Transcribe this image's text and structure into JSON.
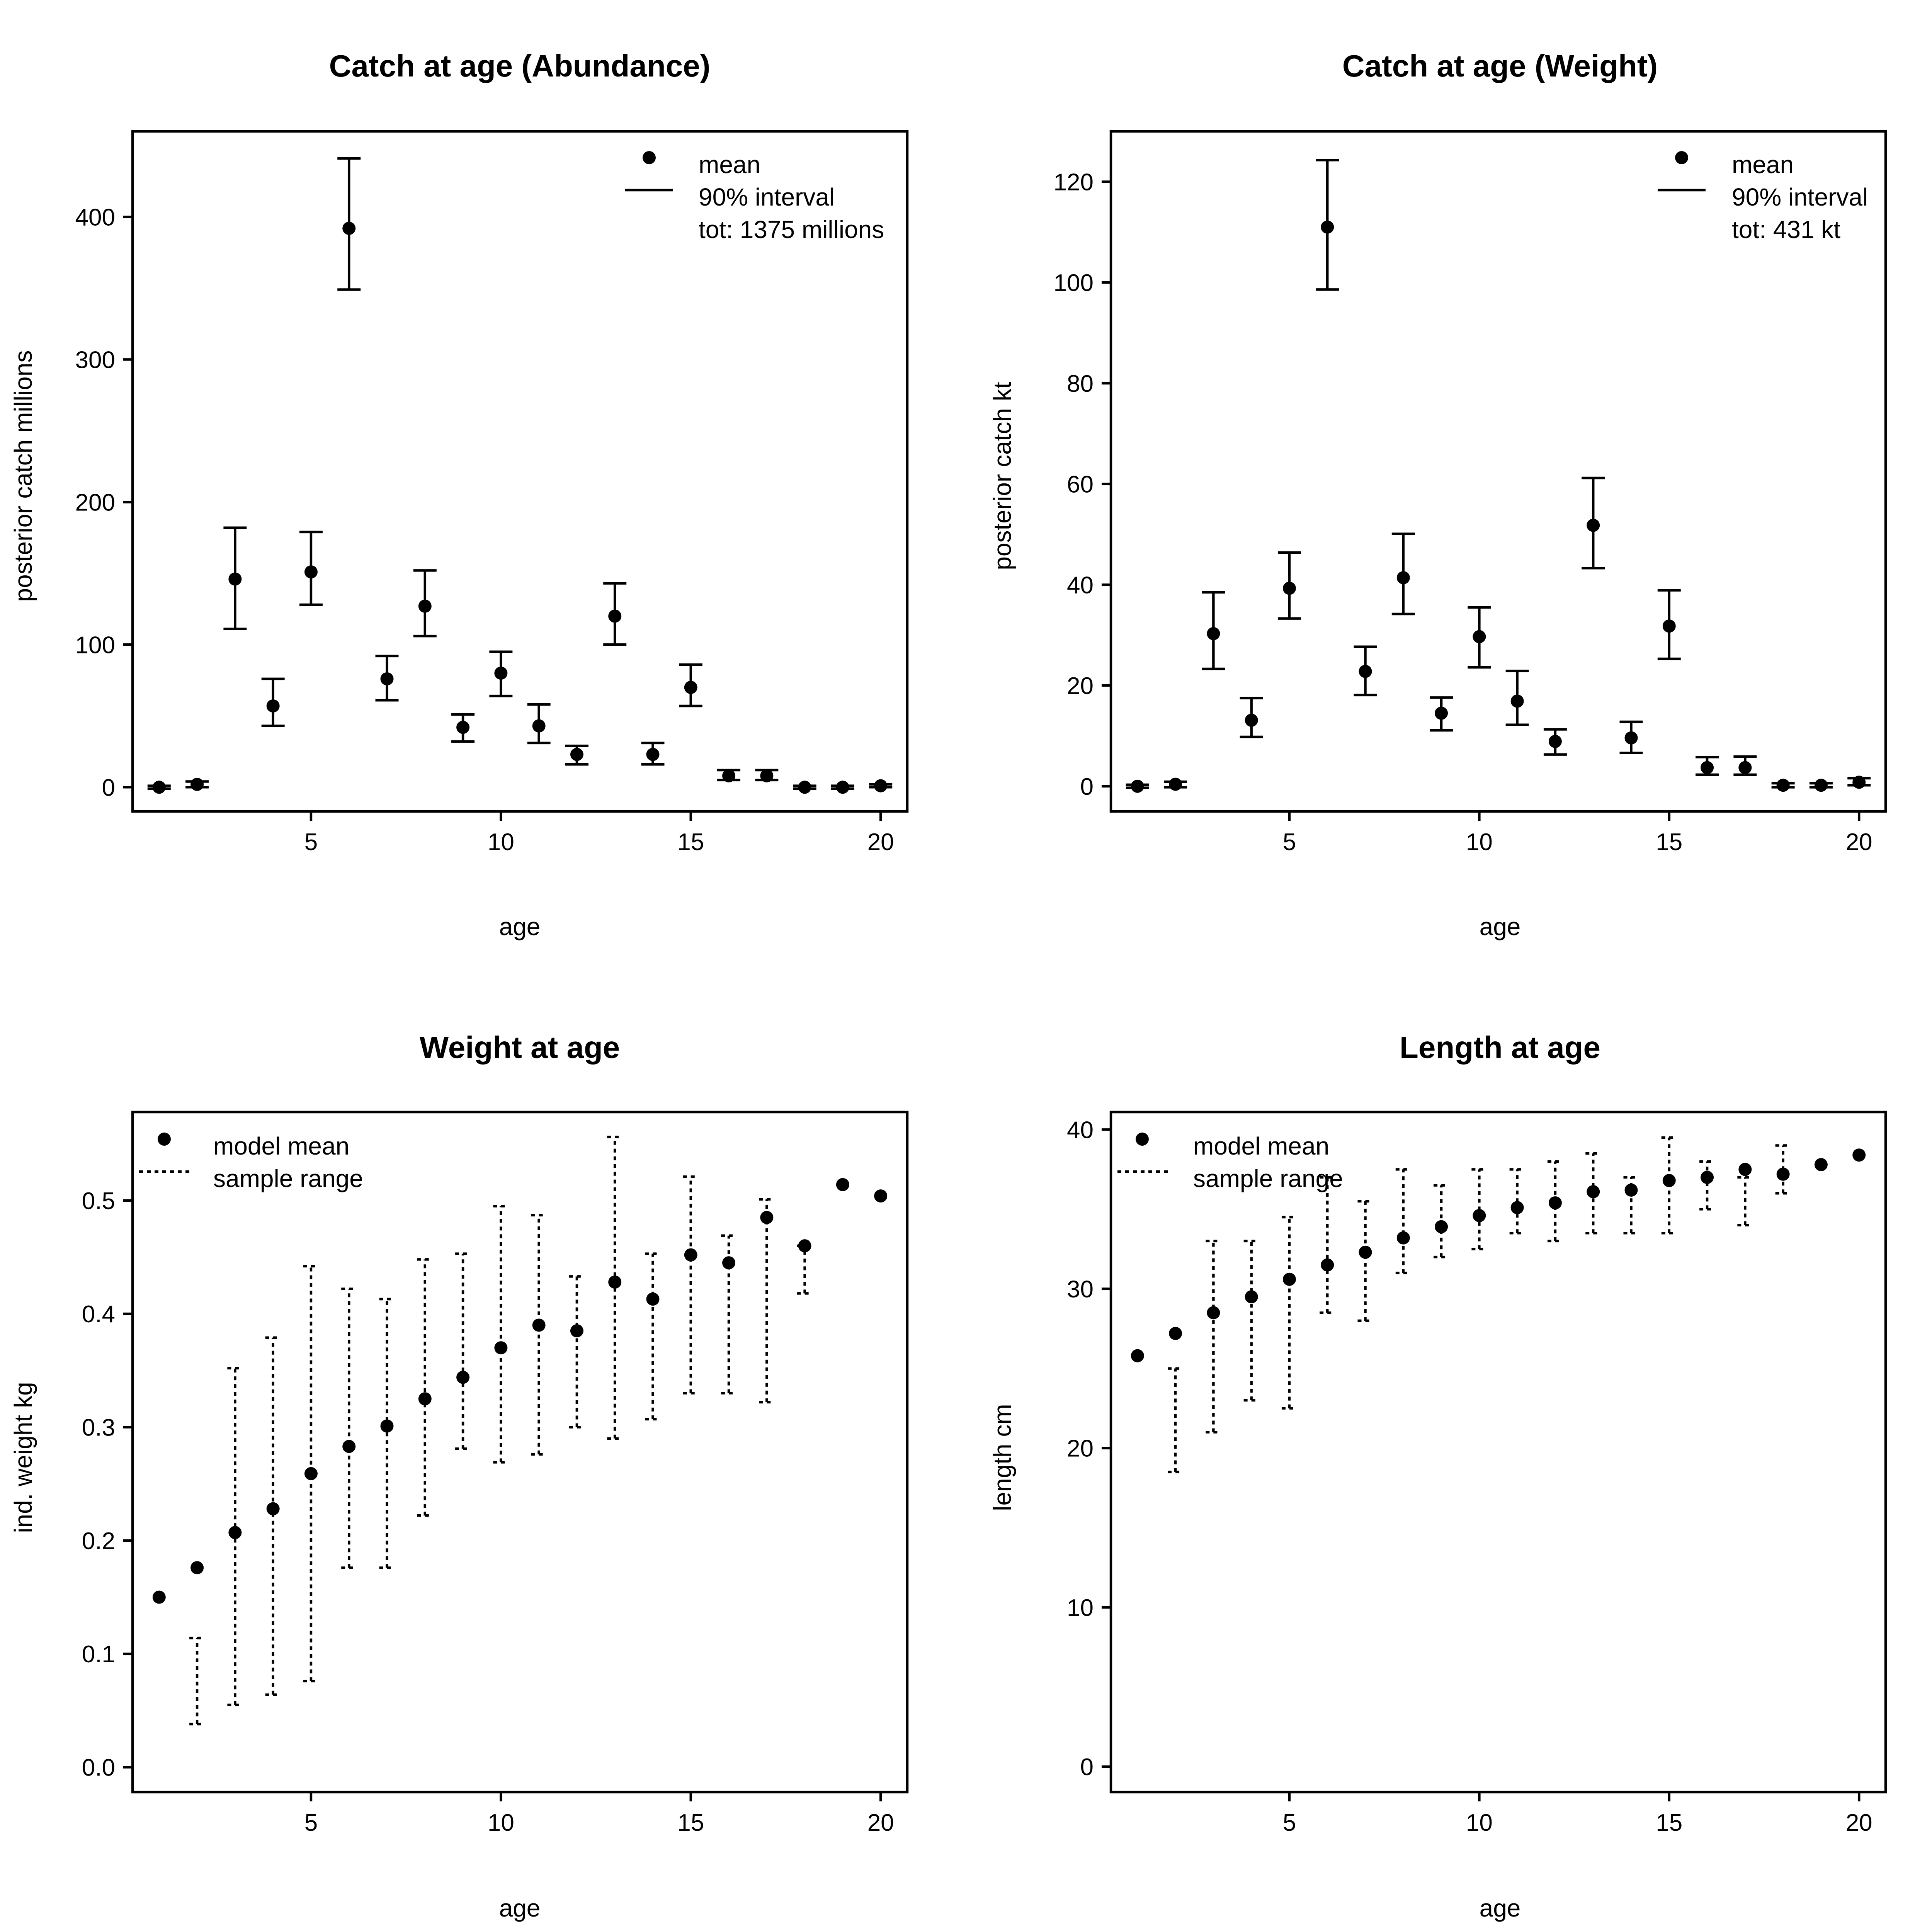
{
  "chart_data": [
    {
      "type": "scatter",
      "title": "Catch at age (Abundance)",
      "xlabel": "age",
      "ylabel": "posterior catch millions",
      "xlim": [
        0.3,
        20.7
      ],
      "ylim": [
        -17,
        460
      ],
      "xticks": [
        5,
        10,
        15,
        20
      ],
      "yticks": [
        0,
        100,
        200,
        300,
        400
      ],
      "interval_style": "solid",
      "legend": {
        "position": "top-right",
        "point_label": "mean",
        "line_label": "90% interval",
        "extra_label": "tot: 1375 millions"
      },
      "x": [
        1,
        2,
        3,
        4,
        5,
        6,
        7,
        8,
        9,
        10,
        11,
        12,
        13,
        14,
        15,
        16,
        17,
        18,
        19,
        20
      ],
      "mean": [
        0,
        2,
        146,
        57,
        151,
        392,
        76,
        127,
        42,
        80,
        43,
        23,
        120,
        23,
        70,
        8,
        8,
        0,
        0,
        1
      ],
      "lower": [
        -1,
        0,
        111,
        43,
        128,
        349,
        61,
        106,
        32,
        64,
        31,
        16,
        100,
        16,
        57,
        5,
        5,
        -1,
        -1,
        0
      ],
      "upper": [
        1,
        4,
        182,
        76,
        179,
        441,
        92,
        152,
        51,
        95,
        58,
        29,
        143,
        31,
        86,
        12,
        12,
        1,
        1,
        2
      ]
    },
    {
      "type": "scatter",
      "title": "Catch at age (Weight)",
      "xlabel": "age",
      "ylabel": "posterior catch kt",
      "xlim": [
        0.3,
        20.7
      ],
      "ylim": [
        -5,
        130
      ],
      "xticks": [
        5,
        10,
        15,
        20
      ],
      "yticks": [
        0,
        20,
        40,
        60,
        80,
        100,
        120
      ],
      "interval_style": "solid",
      "legend": {
        "position": "top-right",
        "point_label": "mean",
        "line_label": "90% interval",
        "extra_label": "tot: 431 kt"
      },
      "x": [
        1,
        2,
        3,
        4,
        5,
        6,
        7,
        8,
        9,
        10,
        11,
        12,
        13,
        14,
        15,
        16,
        17,
        18,
        19,
        20
      ],
      "mean": [
        0,
        0.4,
        30.3,
        13.1,
        39.3,
        111,
        22.8,
        41.4,
        14.5,
        29.7,
        16.9,
        8.9,
        51.8,
        9.6,
        31.8,
        3.7,
        3.7,
        0.2,
        0.2,
        0.8
      ],
      "lower": [
        -0.3,
        -0.2,
        23.3,
        9.8,
        33.3,
        98.6,
        18.1,
        34.2,
        11.1,
        23.6,
        12.2,
        6.3,
        43.3,
        6.6,
        25.3,
        2.3,
        2.3,
        -0.2,
        -0.2,
        0.2
      ],
      "upper": [
        0.3,
        0.9,
        38.5,
        17.5,
        46.4,
        124.3,
        27.7,
        50.1,
        17.6,
        35.5,
        22.9,
        11.3,
        61.2,
        12.8,
        38.9,
        5.8,
        5.9,
        0.6,
        0.6,
        1.6
      ]
    },
    {
      "type": "scatter",
      "title": "Weight at age",
      "xlabel": "age",
      "ylabel": "ind. weight kg",
      "xlim": [
        0.3,
        20.7
      ],
      "ylim": [
        -0.022,
        0.578
      ],
      "xticks": [
        5,
        10,
        15,
        20
      ],
      "yticks": [
        "0.0",
        "0.1",
        "0.2",
        "0.3",
        "0.4",
        "0.5"
      ],
      "interval_style": "dotted",
      "legend": {
        "position": "top-left",
        "point_label": "model mean",
        "line_label": "sample range",
        "extra_label": ""
      },
      "x": [
        1,
        2,
        3,
        4,
        5,
        6,
        7,
        8,
        9,
        10,
        11,
        12,
        13,
        14,
        15,
        16,
        17,
        18,
        19,
        20
      ],
      "mean": [
        0.15,
        0.176,
        0.207,
        0.228,
        0.259,
        0.283,
        0.301,
        0.325,
        0.344,
        0.37,
        0.39,
        0.385,
        0.428,
        0.413,
        0.452,
        0.445,
        0.485,
        0.46,
        0.514,
        0.504
      ],
      "lower": [
        null,
        0.038,
        0.055,
        0.064,
        0.076,
        0.176,
        0.176,
        0.222,
        0.281,
        0.269,
        0.276,
        0.3,
        0.29,
        0.307,
        0.33,
        0.33,
        0.322,
        0.418,
        null,
        null
      ],
      "upper": [
        null,
        0.114,
        0.352,
        0.379,
        0.442,
        0.422,
        0.413,
        0.448,
        0.453,
        0.495,
        0.487,
        0.433,
        0.556,
        0.453,
        0.521,
        0.469,
        0.501,
        0.46,
        null,
        null
      ]
    },
    {
      "type": "scatter",
      "title": "Length at age",
      "xlabel": "age",
      "ylabel": "length cm",
      "xlim": [
        0.3,
        20.7
      ],
      "ylim": [
        -1.6,
        41.1
      ],
      "xticks": [
        5,
        10,
        15,
        20
      ],
      "yticks": [
        0,
        10,
        20,
        30,
        40
      ],
      "interval_style": "dotted",
      "legend": {
        "position": "top-left",
        "point_label": "model mean",
        "line_label": "sample range",
        "extra_label": ""
      },
      "x": [
        1,
        2,
        3,
        4,
        5,
        6,
        7,
        8,
        9,
        10,
        11,
        12,
        13,
        14,
        15,
        16,
        17,
        18,
        19,
        20
      ],
      "mean": [
        25.8,
        27.2,
        28.5,
        29.5,
        30.6,
        31.5,
        32.3,
        33.2,
        33.9,
        34.6,
        35.1,
        35.4,
        36.1,
        36.2,
        36.8,
        37.0,
        37.5,
        37.2,
        37.8,
        38.4
      ],
      "lower": [
        null,
        18.5,
        21.0,
        23.0,
        22.5,
        28.5,
        28.0,
        31.0,
        32.0,
        32.5,
        33.5,
        33.0,
        33.5,
        33.5,
        33.5,
        35.0,
        34.0,
        36.0,
        null,
        null
      ],
      "upper": [
        null,
        25.0,
        33.0,
        33.0,
        34.5,
        37.0,
        35.5,
        37.5,
        36.5,
        37.5,
        37.5,
        38.0,
        38.5,
        37.0,
        39.5,
        38.0,
        37.0,
        39.0,
        null,
        null
      ]
    }
  ]
}
